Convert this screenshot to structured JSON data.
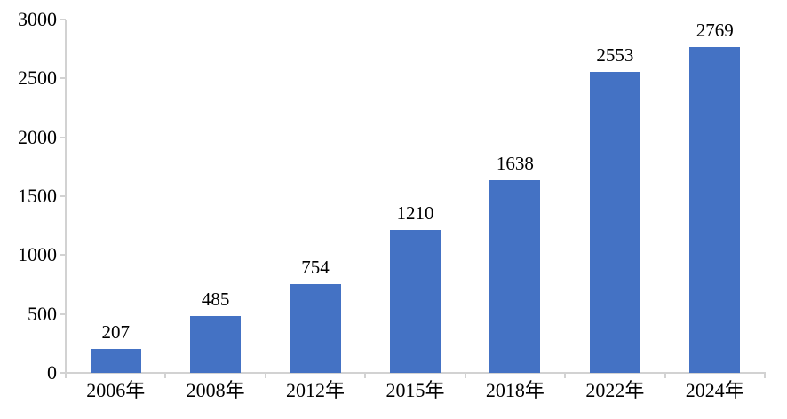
{
  "chart_data": {
    "type": "bar",
    "title": "",
    "xlabel": "",
    "ylabel": "",
    "categories": [
      "2006年",
      "2008年",
      "2012年",
      "2015年",
      "2018年",
      "2022年",
      "2024年"
    ],
    "values": [
      207,
      485,
      754,
      1210,
      1638,
      2553,
      2769
    ],
    "data_labels": [
      "207",
      "485",
      "754",
      "1210",
      "1638",
      "2553",
      "2769"
    ],
    "ylim": [
      0,
      3000
    ],
    "ytick_interval": 500,
    "yticks": [
      0,
      500,
      1000,
      1500,
      2000,
      2500,
      3000
    ],
    "grid": false,
    "legend": "none",
    "bar_color": "#4472C4",
    "axis_color": "#D2D2D2",
    "text_color": "#000000",
    "background_color": "#FFFFFF"
  }
}
